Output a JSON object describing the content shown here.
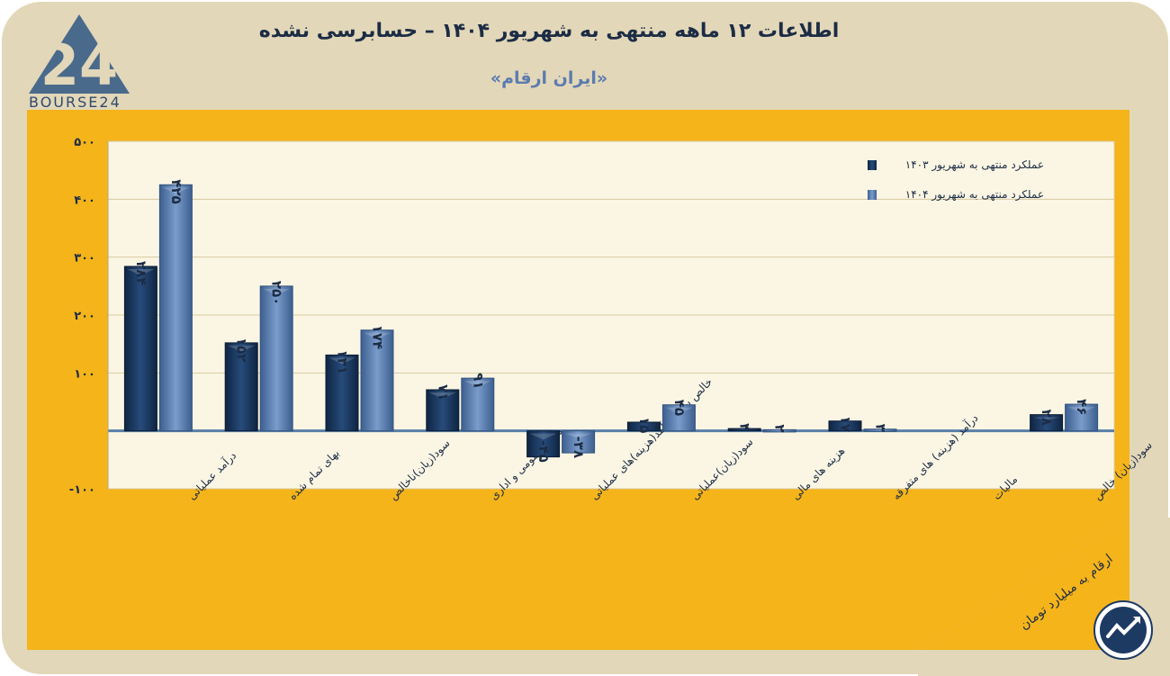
{
  "header": {
    "title": "اطلاعات ۱۲ ماهه منتهی به شهریور ۱۴۰۴ – حسابرسی نشده",
    "subtitle": "«ایران ارقام»"
  },
  "logo": {
    "text": "BOURSE24",
    "icon": "bourse24-logo-icon"
  },
  "footer": {
    "units": "ارقام به میلیارد تومان",
    "badge_icon": "trend-arrow-icon"
  },
  "colors": {
    "card": "#e2d7b8",
    "panel": "#f4b41a",
    "series1": "#1d3a63",
    "series2": "#5b7fb0",
    "axis": "#5a7fa8"
  },
  "chart_data": {
    "type": "bar",
    "ylim": [
      -100,
      500
    ],
    "yticks": [
      -100,
      100,
      200,
      300,
      400,
      500
    ],
    "ytick_labels": [
      "-۱۰۰",
      "۱۰۰",
      "۲۰۰",
      "۳۰۰",
      "۴۰۰",
      "۵۰۰"
    ],
    "grid": true,
    "legend_position": "top-right",
    "categories": [
      "درآمد عملیاتی",
      "بهای تمام شده",
      "سود(زیان)ناخالص",
      "هزینه عمومی و اداری",
      "خالص سایر درآمد(هزینه)های عملیاتی",
      "سود(زیان)عملیاتی",
      "هزینه های مالی",
      "درآمد (هزینه) های متفرقه",
      "مالیات",
      "سود(زیان) خالص"
    ],
    "series": [
      {
        "name": "عملکرد منتهی به شهریور ۱۴۰۳",
        "values": [
          284,
          152,
          131,
          71,
          -45,
          15,
          4,
          17,
          0,
          28
        ],
        "labels": [
          "۲۸۴",
          "۱۵۲",
          "۱۳۱",
          "۷۱",
          "-۴۵",
          "۱۵",
          "۴",
          "۱۷",
          "",
          "۲۸"
        ]
      },
      {
        "name": "عملکرد منتهی به شهریور ۱۴۰۴",
        "values": [
          425,
          250,
          174,
          91,
          -38,
          45,
          2,
          3,
          0,
          46
        ],
        "labels": [
          "۴۲۵",
          "۲۵۰",
          "۱۷۴",
          "۹۱",
          "-۳۸",
          "۴۵",
          "۲",
          "۳",
          "",
          "۴۶"
        ]
      }
    ]
  }
}
